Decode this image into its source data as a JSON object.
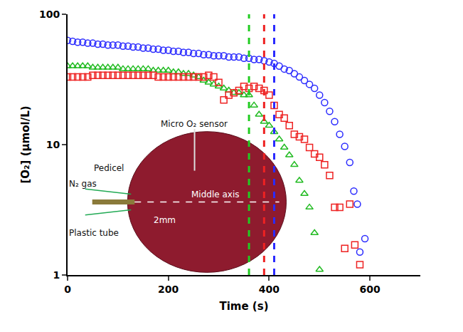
{
  "chart_data": {
    "type": "scatter",
    "log": "y",
    "grid": false,
    "x_label": "Time (s)",
    "y_label": "[O₂] (μmol/L)",
    "xlim": [
      0,
      700
    ],
    "xticks": [
      0,
      200,
      400,
      600
    ],
    "ylim": [
      1,
      100
    ],
    "yticks": [
      1,
      10,
      100
    ],
    "series": [
      {
        "color": "#2b2bff",
        "marker": "circle",
        "x": [
          0,
          10,
          20,
          30,
          40,
          50,
          60,
          70,
          80,
          90,
          100,
          110,
          120,
          130,
          140,
          150,
          160,
          170,
          180,
          190,
          200,
          210,
          220,
          230,
          240,
          250,
          260,
          270,
          280,
          290,
          300,
          310,
          320,
          330,
          340,
          350,
          360,
          370,
          380,
          390,
          400,
          410,
          420,
          430,
          440,
          450,
          460,
          470,
          480,
          490,
          500,
          510,
          520,
          530,
          540,
          550,
          560,
          568,
          575,
          580,
          590
        ],
        "values": [
          63,
          62,
          61,
          61,
          60,
          60,
          59,
          59,
          58,
          58,
          58,
          57,
          57,
          56,
          56,
          55,
          55,
          54,
          54,
          53,
          53,
          52,
          52,
          51,
          51,
          50,
          50,
          49,
          49,
          48,
          48,
          48,
          47,
          47,
          47,
          46,
          46,
          45,
          45,
          44,
          43,
          42,
          40,
          38,
          37,
          35,
          33,
          31,
          29,
          27,
          24,
          21,
          18,
          15,
          12,
          9.7,
          7.3,
          4.4,
          3.5,
          1.5,
          1.9
        ]
      },
      {
        "color": "#22bb22",
        "marker": "triangle",
        "x": [
          0,
          10,
          20,
          30,
          40,
          50,
          60,
          70,
          80,
          90,
          100,
          110,
          120,
          130,
          140,
          150,
          160,
          170,
          180,
          190,
          200,
          210,
          220,
          230,
          240,
          250,
          260,
          270,
          280,
          290,
          300,
          310,
          320,
          330,
          340,
          350,
          360,
          370,
          380,
          390,
          400,
          410,
          420,
          430,
          440,
          450,
          460,
          470,
          480,
          490,
          500
        ],
        "values": [
          40,
          40,
          40,
          40,
          40,
          39,
          39,
          39,
          39,
          39,
          39,
          38,
          38,
          38,
          38,
          38,
          38,
          37,
          37,
          37,
          37,
          36,
          36,
          35,
          35,
          34,
          33,
          31,
          30,
          29,
          28,
          27,
          26,
          25,
          25,
          24,
          24,
          20,
          17,
          15,
          14,
          12.5,
          11,
          9.5,
          8.3,
          7,
          5.3,
          4.2,
          3.3,
          2.1,
          1.1
        ]
      },
      {
        "color": "#ee2222",
        "marker": "square",
        "x": [
          0,
          10,
          20,
          30,
          40,
          50,
          60,
          70,
          80,
          90,
          100,
          110,
          120,
          130,
          140,
          150,
          160,
          170,
          180,
          190,
          200,
          210,
          220,
          230,
          240,
          250,
          260,
          270,
          280,
          290,
          300,
          310,
          320,
          330,
          340,
          350,
          360,
          370,
          380,
          390,
          400,
          410,
          420,
          430,
          440,
          450,
          460,
          470,
          480,
          490,
          500,
          510,
          520,
          530,
          540,
          550,
          560,
          570,
          580
        ],
        "values": [
          33,
          33,
          33,
          33,
          33,
          34,
          34,
          34,
          34,
          34,
          34,
          34,
          34,
          34,
          34,
          34,
          34,
          34,
          33,
          33,
          33,
          33,
          33,
          33,
          33,
          33,
          33,
          33,
          34,
          33,
          30,
          22,
          24,
          25,
          26,
          28,
          27,
          28,
          27,
          26,
          24,
          20,
          17,
          16,
          14,
          12,
          11.5,
          11,
          9.5,
          8.5,
          8,
          7,
          5.8,
          3.3,
          3.3,
          1.6,
          3.5,
          1.7,
          1.2
        ]
      }
    ],
    "vertical_lines": [
      {
        "x": 360,
        "color": "#22cc22"
      },
      {
        "x": 390,
        "color": "#ee2222"
      },
      {
        "x": 410,
        "color": "#2b2bff"
      }
    ],
    "annotations": [
      "Micro O₂ sensor",
      "Pedicel",
      "N₂ gas",
      "Middle axis",
      "2mm",
      "Plastic tube"
    ]
  }
}
